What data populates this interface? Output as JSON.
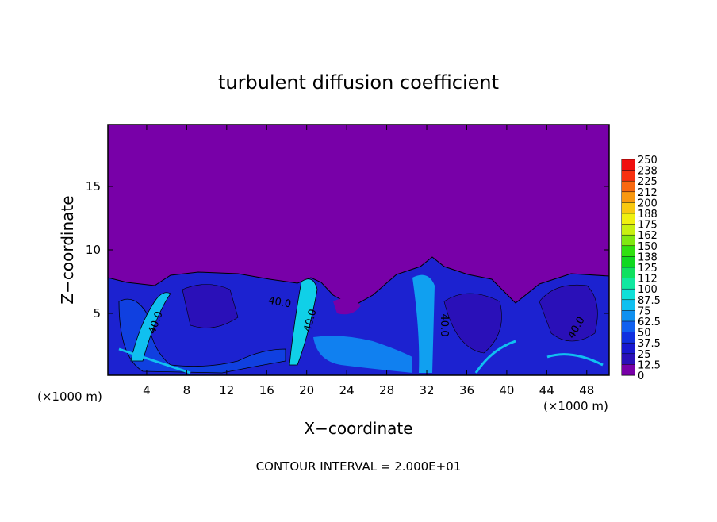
{
  "chart_data": {
    "type": "contourf",
    "title": "turbulent diffusion coefficient",
    "x_label": "X−coordinate",
    "y_label": "Z−coordinate",
    "x_unit_label": "(×1000 m)",
    "footer": "CONTOUR INTERVAL = 2.000E+01",
    "xlim": [
      0,
      50
    ],
    "xticks": [
      4,
      8,
      12,
      16,
      20,
      24,
      28,
      32,
      36,
      40,
      44,
      48
    ],
    "ylim": [
      0,
      20
    ],
    "yticks": [
      5,
      10,
      15
    ],
    "levels": [
      0,
      12.5,
      25,
      37.5,
      50,
      62.5,
      75,
      87.5,
      100,
      {
        "value": 112.5,
        "label": "112"
      },
      125,
      {
        "value": 137.5,
        "label": "138"
      },
      150,
      {
        "value": 162.5,
        "label": "162"
      },
      175,
      {
        "value": 187.5,
        "label": "188"
      },
      200,
      {
        "value": 212.5,
        "label": "212"
      },
      225,
      {
        "value": 237.5,
        "label": "238"
      },
      250
    ],
    "level_colors": [
      "#7800a8",
      "#2a10b8",
      "#1818d0",
      "#1030e0",
      "#1060f0",
      "#1090f0",
      "#10c0f0",
      "#10e0d8",
      "#10e8a0",
      "#10e060",
      "#10d820",
      "#30e010",
      "#80e810",
      "#c8f010",
      "#f0f010",
      "#f8c810",
      "#f89810",
      "#f86810",
      "#f83010",
      "#f01010"
    ],
    "contour_labels": [
      "40.0",
      "40.0",
      "40.0",
      "40.0",
      "40.0"
    ]
  }
}
